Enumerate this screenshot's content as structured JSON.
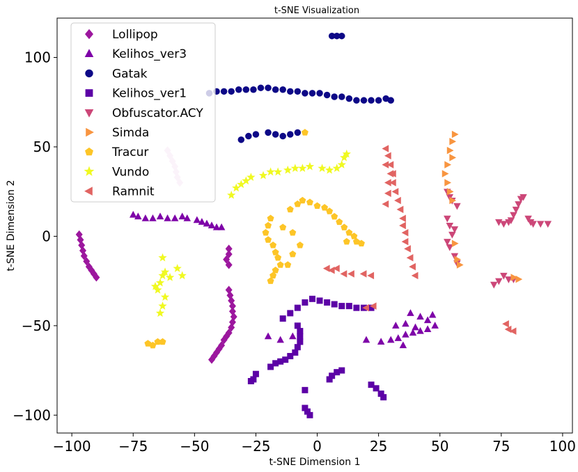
{
  "chart_data": {
    "type": "scatter",
    "title": "t-SNE Visualization",
    "xlabel": "t-SNE Dimension 1",
    "ylabel": "t-SNE Dimension 2",
    "xlim": [
      -106,
      104
    ],
    "ylim": [
      -110,
      122
    ],
    "xticks": [
      -100,
      -75,
      -50,
      -25,
      0,
      25,
      50,
      75,
      100
    ],
    "yticks": [
      -100,
      -50,
      0,
      50,
      100
    ],
    "xtick_labels": [
      "−100",
      "−75",
      "−50",
      "−25",
      "0",
      "25",
      "50",
      "75",
      "100"
    ],
    "ytick_labels": [
      "−100",
      "−50",
      "0",
      "50",
      "100"
    ],
    "grid": false,
    "legend_position": "top-left",
    "series": [
      {
        "name": "Lollipop",
        "marker": "diamond",
        "color": "#9c179e",
        "points": [
          [
            -97,
            1
          ],
          [
            -96.5,
            -2
          ],
          [
            -96,
            -5
          ],
          [
            -95.5,
            -8
          ],
          [
            -95,
            -11
          ],
          [
            -94,
            -14
          ],
          [
            -93,
            -17
          ],
          [
            -92,
            -19
          ],
          [
            -91,
            -21
          ],
          [
            -90,
            -23
          ],
          [
            -36,
            -30
          ],
          [
            -35.5,
            -33
          ],
          [
            -35,
            -36
          ],
          [
            -34.5,
            -39
          ],
          [
            -34.5,
            -42
          ],
          [
            -34,
            -45
          ],
          [
            -34.5,
            -48
          ],
          [
            -35,
            -51
          ],
          [
            -36,
            -54
          ],
          [
            -37,
            -56
          ],
          [
            -38,
            -58
          ],
          [
            -39,
            -61
          ],
          [
            -40,
            -63
          ],
          [
            -41,
            -65
          ],
          [
            -42,
            -67
          ],
          [
            -43,
            -69
          ],
          [
            -36,
            -7
          ],
          [
            -36,
            -10
          ],
          [
            -37,
            -13
          ],
          [
            -36,
            -16
          ],
          [
            -61,
            48
          ],
          [
            -60,
            45
          ],
          [
            -59,
            42
          ],
          [
            -58,
            39
          ],
          [
            -57.5,
            36
          ],
          [
            -57,
            33
          ],
          [
            -56,
            30
          ]
        ]
      },
      {
        "name": "Kelihos_ver3",
        "marker": "triangle-up",
        "color": "#7e03a8",
        "points": [
          [
            -75,
            12
          ],
          [
            -73,
            11
          ],
          [
            -70,
            10
          ],
          [
            -67,
            10
          ],
          [
            -64,
            11
          ],
          [
            -61,
            10
          ],
          [
            -58,
            10
          ],
          [
            -55,
            11
          ],
          [
            -53,
            10
          ],
          [
            -49,
            9
          ],
          [
            -47,
            8
          ],
          [
            -45,
            7
          ],
          [
            -43,
            6
          ],
          [
            -41,
            5
          ],
          [
            -39,
            5
          ],
          [
            -20,
            -56
          ],
          [
            -15,
            -58
          ],
          [
            -10,
            -56
          ],
          [
            20,
            -58
          ],
          [
            26,
            -59
          ],
          [
            30,
            -58
          ],
          [
            33,
            -57
          ],
          [
            36,
            -55
          ],
          [
            39,
            -54
          ],
          [
            42,
            -53
          ],
          [
            45,
            -52
          ],
          [
            48,
            -50
          ],
          [
            35,
            -61
          ],
          [
            38,
            -43
          ],
          [
            42,
            -45
          ],
          [
            45,
            -47
          ],
          [
            47,
            -44
          ],
          [
            40,
            -51
          ],
          [
            36,
            -49
          ],
          [
            32,
            -50
          ]
        ]
      },
      {
        "name": "Gatak",
        "marker": "circle",
        "color": "#0d0887",
        "points": [
          [
            -44,
            80
          ],
          [
            -41,
            81
          ],
          [
            -38,
            81
          ],
          [
            -35,
            81
          ],
          [
            -32,
            82
          ],
          [
            -29,
            82
          ],
          [
            -26,
            82
          ],
          [
            -23,
            83
          ],
          [
            -20,
            83
          ],
          [
            -17,
            82
          ],
          [
            -14,
            82
          ],
          [
            -11,
            81
          ],
          [
            -8,
            81
          ],
          [
            -5,
            80
          ],
          [
            -2,
            80
          ],
          [
            1,
            80
          ],
          [
            4,
            79
          ],
          [
            7,
            78
          ],
          [
            10,
            78
          ],
          [
            13,
            77
          ],
          [
            16,
            76
          ],
          [
            19,
            76
          ],
          [
            22,
            76
          ],
          [
            25,
            76
          ],
          [
            28,
            77
          ],
          [
            30,
            76
          ],
          [
            6,
            112
          ],
          [
            8,
            112
          ],
          [
            10,
            112
          ],
          [
            -31,
            54
          ],
          [
            -28,
            56
          ],
          [
            -25,
            57
          ],
          [
            -20,
            58
          ],
          [
            -17,
            57
          ],
          [
            -14,
            56
          ],
          [
            -11,
            57
          ],
          [
            -8,
            58
          ]
        ]
      },
      {
        "name": "Kelihos_ver1",
        "marker": "square",
        "color": "#5c01a6",
        "points": [
          [
            -14,
            -46
          ],
          [
            -11,
            -43
          ],
          [
            -8,
            -40
          ],
          [
            -5,
            -37
          ],
          [
            -2,
            -35
          ],
          [
            1,
            -36
          ],
          [
            4,
            -37
          ],
          [
            7,
            -38
          ],
          [
            10,
            -39
          ],
          [
            13,
            -39
          ],
          [
            16,
            -40
          ],
          [
            19,
            -40
          ],
          [
            22,
            -40
          ],
          [
            -8,
            -50
          ],
          [
            -7,
            -53
          ],
          [
            -7,
            -56
          ],
          [
            -7,
            -59
          ],
          [
            -8,
            -62
          ],
          [
            -9,
            -65
          ],
          [
            -11,
            -67
          ],
          [
            -13,
            -69
          ],
          [
            -15,
            -70
          ],
          [
            -17,
            -71
          ],
          [
            -19,
            -73
          ],
          [
            -25,
            -77
          ],
          [
            -26,
            -80
          ],
          [
            -27,
            -81
          ],
          [
            -5,
            -86
          ],
          [
            -5,
            -96
          ],
          [
            -4,
            -98
          ],
          [
            -3,
            -100
          ],
          [
            5,
            -80
          ],
          [
            6,
            -78
          ],
          [
            8,
            -76
          ],
          [
            10,
            -75
          ],
          [
            22,
            -83
          ],
          [
            24,
            -85
          ],
          [
            26,
            -88
          ],
          [
            27,
            -90
          ]
        ]
      },
      {
        "name": "Obfuscator.ACY",
        "marker": "triangle-down",
        "color": "#cc4778",
        "points": [
          [
            53,
            25
          ],
          [
            54,
            22
          ],
          [
            55,
            20
          ],
          [
            57,
            17
          ],
          [
            53,
            10
          ],
          [
            54,
            6
          ],
          [
            56,
            4
          ],
          [
            55,
            1
          ],
          [
            53,
            -3
          ],
          [
            54,
            -6
          ],
          [
            56,
            -11
          ],
          [
            57,
            -15
          ],
          [
            74,
            8
          ],
          [
            76,
            7
          ],
          [
            78,
            8
          ],
          [
            79,
            9
          ],
          [
            80,
            12
          ],
          [
            81,
            15
          ],
          [
            82,
            18
          ],
          [
            83,
            21
          ],
          [
            84,
            22
          ],
          [
            86,
            10
          ],
          [
            87,
            8
          ],
          [
            88,
            7
          ],
          [
            91,
            7
          ],
          [
            94,
            7
          ],
          [
            76,
            -22
          ],
          [
            78,
            -24
          ],
          [
            80,
            -24
          ],
          [
            74,
            -25
          ],
          [
            72,
            -27
          ]
        ]
      },
      {
        "name": "Simda",
        "marker": "triangle-right",
        "color": "#f89540",
        "points": [
          [
            56,
            57
          ],
          [
            55,
            53
          ],
          [
            54,
            48
          ],
          [
            55,
            44
          ],
          [
            53,
            40
          ],
          [
            52,
            35
          ],
          [
            53,
            30
          ],
          [
            54,
            25
          ],
          [
            55,
            20
          ],
          [
            56,
            -4
          ],
          [
            57,
            -13
          ],
          [
            58,
            -16
          ],
          [
            80,
            -23
          ],
          [
            82,
            -24
          ]
        ]
      },
      {
        "name": "Tracur",
        "marker": "pentagon",
        "color": "#fdc527",
        "points": [
          [
            -19,
            10
          ],
          [
            -20,
            6
          ],
          [
            -21,
            2
          ],
          [
            -20,
            -2
          ],
          [
            -18,
            -5
          ],
          [
            -17,
            -9
          ],
          [
            -16,
            -12
          ],
          [
            -15,
            -16
          ],
          [
            -17,
            -19
          ],
          [
            -18,
            -22
          ],
          [
            -19,
            -25
          ],
          [
            -11,
            15
          ],
          [
            -8,
            18
          ],
          [
            -6,
            20
          ],
          [
            -3,
            19
          ],
          [
            0,
            17
          ],
          [
            3,
            16
          ],
          [
            5,
            14
          ],
          [
            7,
            11
          ],
          [
            9,
            8
          ],
          [
            11,
            5
          ],
          [
            13,
            2
          ],
          [
            15,
            0
          ],
          [
            16,
            -3
          ],
          [
            18,
            -4
          ],
          [
            12,
            -3
          ],
          [
            -14,
            5
          ],
          [
            -10,
            2
          ],
          [
            -7,
            -5
          ],
          [
            -10,
            -10
          ],
          [
            -12,
            -16
          ],
          [
            -69,
            -60
          ],
          [
            -67,
            -61
          ],
          [
            -65,
            -59
          ],
          [
            -63,
            -59
          ],
          [
            -5,
            58
          ]
        ]
      },
      {
        "name": "Vundo",
        "marker": "star",
        "color": "#f0f921",
        "points": [
          [
            -65,
            -30
          ],
          [
            -64,
            -26
          ],
          [
            -63,
            -22
          ],
          [
            -62,
            -20
          ],
          [
            -63,
            -12
          ],
          [
            -60,
            -23
          ],
          [
            -57,
            -18
          ],
          [
            -55,
            -22
          ],
          [
            -62,
            -34
          ],
          [
            -63,
            -39
          ],
          [
            -64,
            -43
          ],
          [
            -66,
            -28
          ],
          [
            -35,
            23
          ],
          [
            -33,
            27
          ],
          [
            -31,
            29
          ],
          [
            -29,
            31
          ],
          [
            -27,
            33
          ],
          [
            -22,
            34
          ],
          [
            -19,
            36
          ],
          [
            -16,
            36
          ],
          [
            -12,
            37
          ],
          [
            -9,
            38
          ],
          [
            -6,
            38
          ],
          [
            -3,
            39
          ],
          [
            2,
            38
          ],
          [
            5,
            37
          ],
          [
            8,
            38
          ],
          [
            10,
            40
          ],
          [
            11,
            44
          ],
          [
            12,
            46
          ]
        ]
      },
      {
        "name": "Ramnit",
        "marker": "triangle-left",
        "color": "#e16462",
        "points": [
          [
            28,
            49
          ],
          [
            29,
            45
          ],
          [
            30,
            40
          ],
          [
            31,
            35
          ],
          [
            31,
            30
          ],
          [
            32,
            25
          ],
          [
            33,
            20
          ],
          [
            34,
            15
          ],
          [
            35,
            10
          ],
          [
            35,
            6
          ],
          [
            36,
            2
          ],
          [
            36,
            -3
          ],
          [
            37,
            -7
          ],
          [
            38,
            -12
          ],
          [
            39,
            -17
          ],
          [
            40,
            -22
          ],
          [
            28,
            18
          ],
          [
            29,
            24
          ],
          [
            29,
            30
          ],
          [
            30,
            35
          ],
          [
            28,
            40
          ],
          [
            4,
            -18
          ],
          [
            6,
            -19
          ],
          [
            8,
            -18
          ],
          [
            11,
            -21
          ],
          [
            14,
            -21
          ],
          [
            19,
            -21
          ],
          [
            22,
            -22
          ],
          [
            20,
            -40
          ],
          [
            23,
            -39
          ],
          [
            77,
            -49
          ],
          [
            78,
            -52
          ],
          [
            80,
            -53
          ]
        ]
      }
    ]
  },
  "colors": {
    "Lollipop": "#9c179e",
    "Kelihos_ver3": "#7e03a8",
    "Gatak": "#0d0887",
    "Kelihos_ver1": "#5c01a6",
    "Obfuscator.ACY": "#cc4778",
    "Simda": "#f89540",
    "Tracur": "#fdc527",
    "Vundo": "#f0f921",
    "Ramnit": "#e16462",
    "Lollipop_light": "#e8c4e6"
  }
}
